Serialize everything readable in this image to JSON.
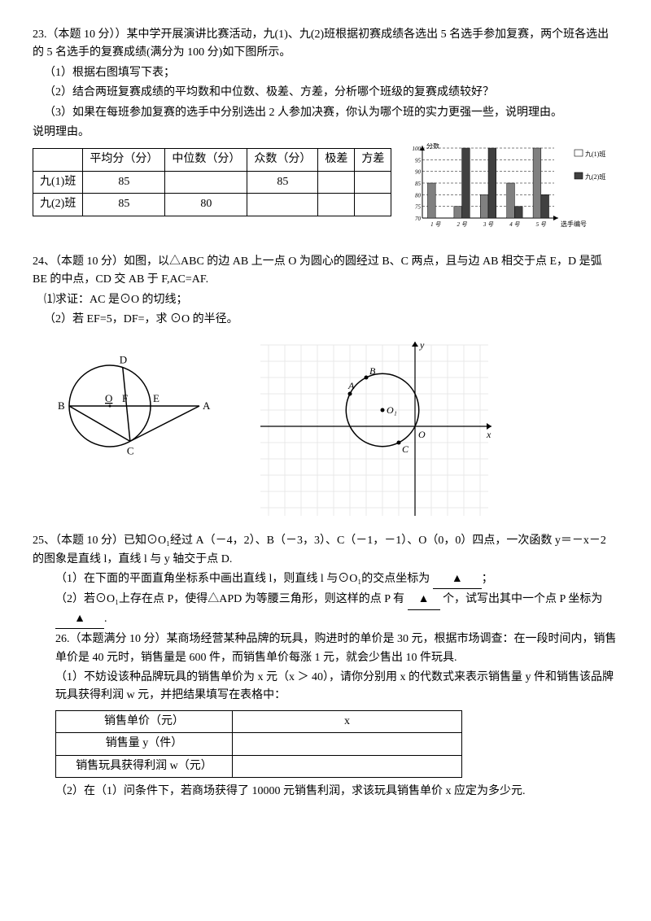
{
  "q23": {
    "title": "23.（本题 10 分））某中学开展演讲比赛活动，九(1)、九(2)班根据初赛成绩各选出 5 名选手参加复赛，两个班各选出的 5 名选手的复赛成绩(满分为 100 分)如下图所示。",
    "p1": "（1）根据右图填写下表；",
    "p2": "（2）结合两班复赛成绩的平均数和中位数、极差、方差，分析哪个班级的复赛成绩较好？",
    "p3": "（3）如果在每班参加复赛的选手中分别选出 2 人参加决赛，你认为哪个班的实力更强一些，说明理由。",
    "table": {
      "headers": [
        "",
        "平均分（分）",
        "中位数（分）",
        "众数（分）",
        "极差",
        "方差"
      ],
      "r1": [
        "九(1)班",
        "85",
        "",
        "85",
        "",
        ""
      ],
      "r2": [
        "九(2)班",
        "85",
        "80",
        "",
        "",
        ""
      ]
    },
    "chart": {
      "ylabel": "分数",
      "xlabel": "选手编号",
      "legend1": "九(1)班",
      "legend2": "九(2)班",
      "yticks": [
        "70",
        "75",
        "80",
        "85",
        "90",
        "95",
        "100"
      ],
      "xcats": [
        "1 号",
        "2 号",
        "3 号",
        "4 号",
        "5 号"
      ],
      "bars1": [
        85,
        75,
        80,
        85,
        100
      ],
      "bars2": [
        70,
        100,
        100,
        75,
        80
      ],
      "c1": "#808080",
      "c2": "#404040",
      "grid": "#000000",
      "bg": "#ffffff"
    }
  },
  "q24": {
    "title": "24、（本题 10 分）如图，以△ABC 的边 AB 上一点 O 为圆心的圆经过 B、C 两点，且与边 AB 相交于点 E，D 是弧 BE 的中点，CD 交 AB 于 F,AC=AF.",
    "p1": "⑴求证：AC 是⊙O 的切线；",
    "p2": "（2）若 EF=5，DF=，求 ⊙O 的半径。",
    "labels": {
      "D": "D",
      "B": "B",
      "O": "O",
      "F": "F",
      "E": "E",
      "A": "A",
      "C": "C"
    }
  },
  "q25": {
    "title": "25、（本题 10 分）已知⊙O₁经过 A（－4，2）、B（－3，3）、C（－1，－1）、O（0，0）四点，一次函数 y＝－x－2 的图象是直线 l，直线 l 与 y 轴交于点 D.",
    "p1": "（1）在下面的平面直角坐标系中画出直线 l，则直线 l 与⊙O₁的交点坐标为",
    "p2": "（2）若⊙O₁上存在点 P，使得△APD 为等腰三角形，则这样的点 P 有",
    "p2b": "个，试写出其中一个点 P 坐标为",
    "blank": "▲",
    "labels": {
      "A": "A",
      "B": "B",
      "C": "C",
      "O": "O",
      "O1": "O₁",
      "x": "x",
      "y": "y"
    },
    "grid_color": "#e8e8e8"
  },
  "q26": {
    "title": "26.（本题满分 10 分）某商场经营某种品牌的玩具，购进时的单价是 30 元，根据市场调查：在一段时间内，销售单价是 40 元时，销售量是 600 件，而销售单价每涨 1 元，就会少售出 10 件玩具.",
    "p1": "（1）不妨设该种品牌玩具的销售单价为 x 元（x ＞ 40），请你分别用 x 的代数式来表示销售量 y 件和销售该品牌玩具获得利润 w 元，并把结果填写在表格中：",
    "table": {
      "h": [
        "销售单价（元）",
        "x"
      ],
      "r1": [
        "销售量 y（件）",
        ""
      ],
      "r2": [
        "销售玩具获得利润 w（元）",
        ""
      ]
    },
    "p2": "（2）在（1）问条件下，若商场获得了 10000 元销售利润，求该玩具销售单价 x 应定为多少元."
  }
}
